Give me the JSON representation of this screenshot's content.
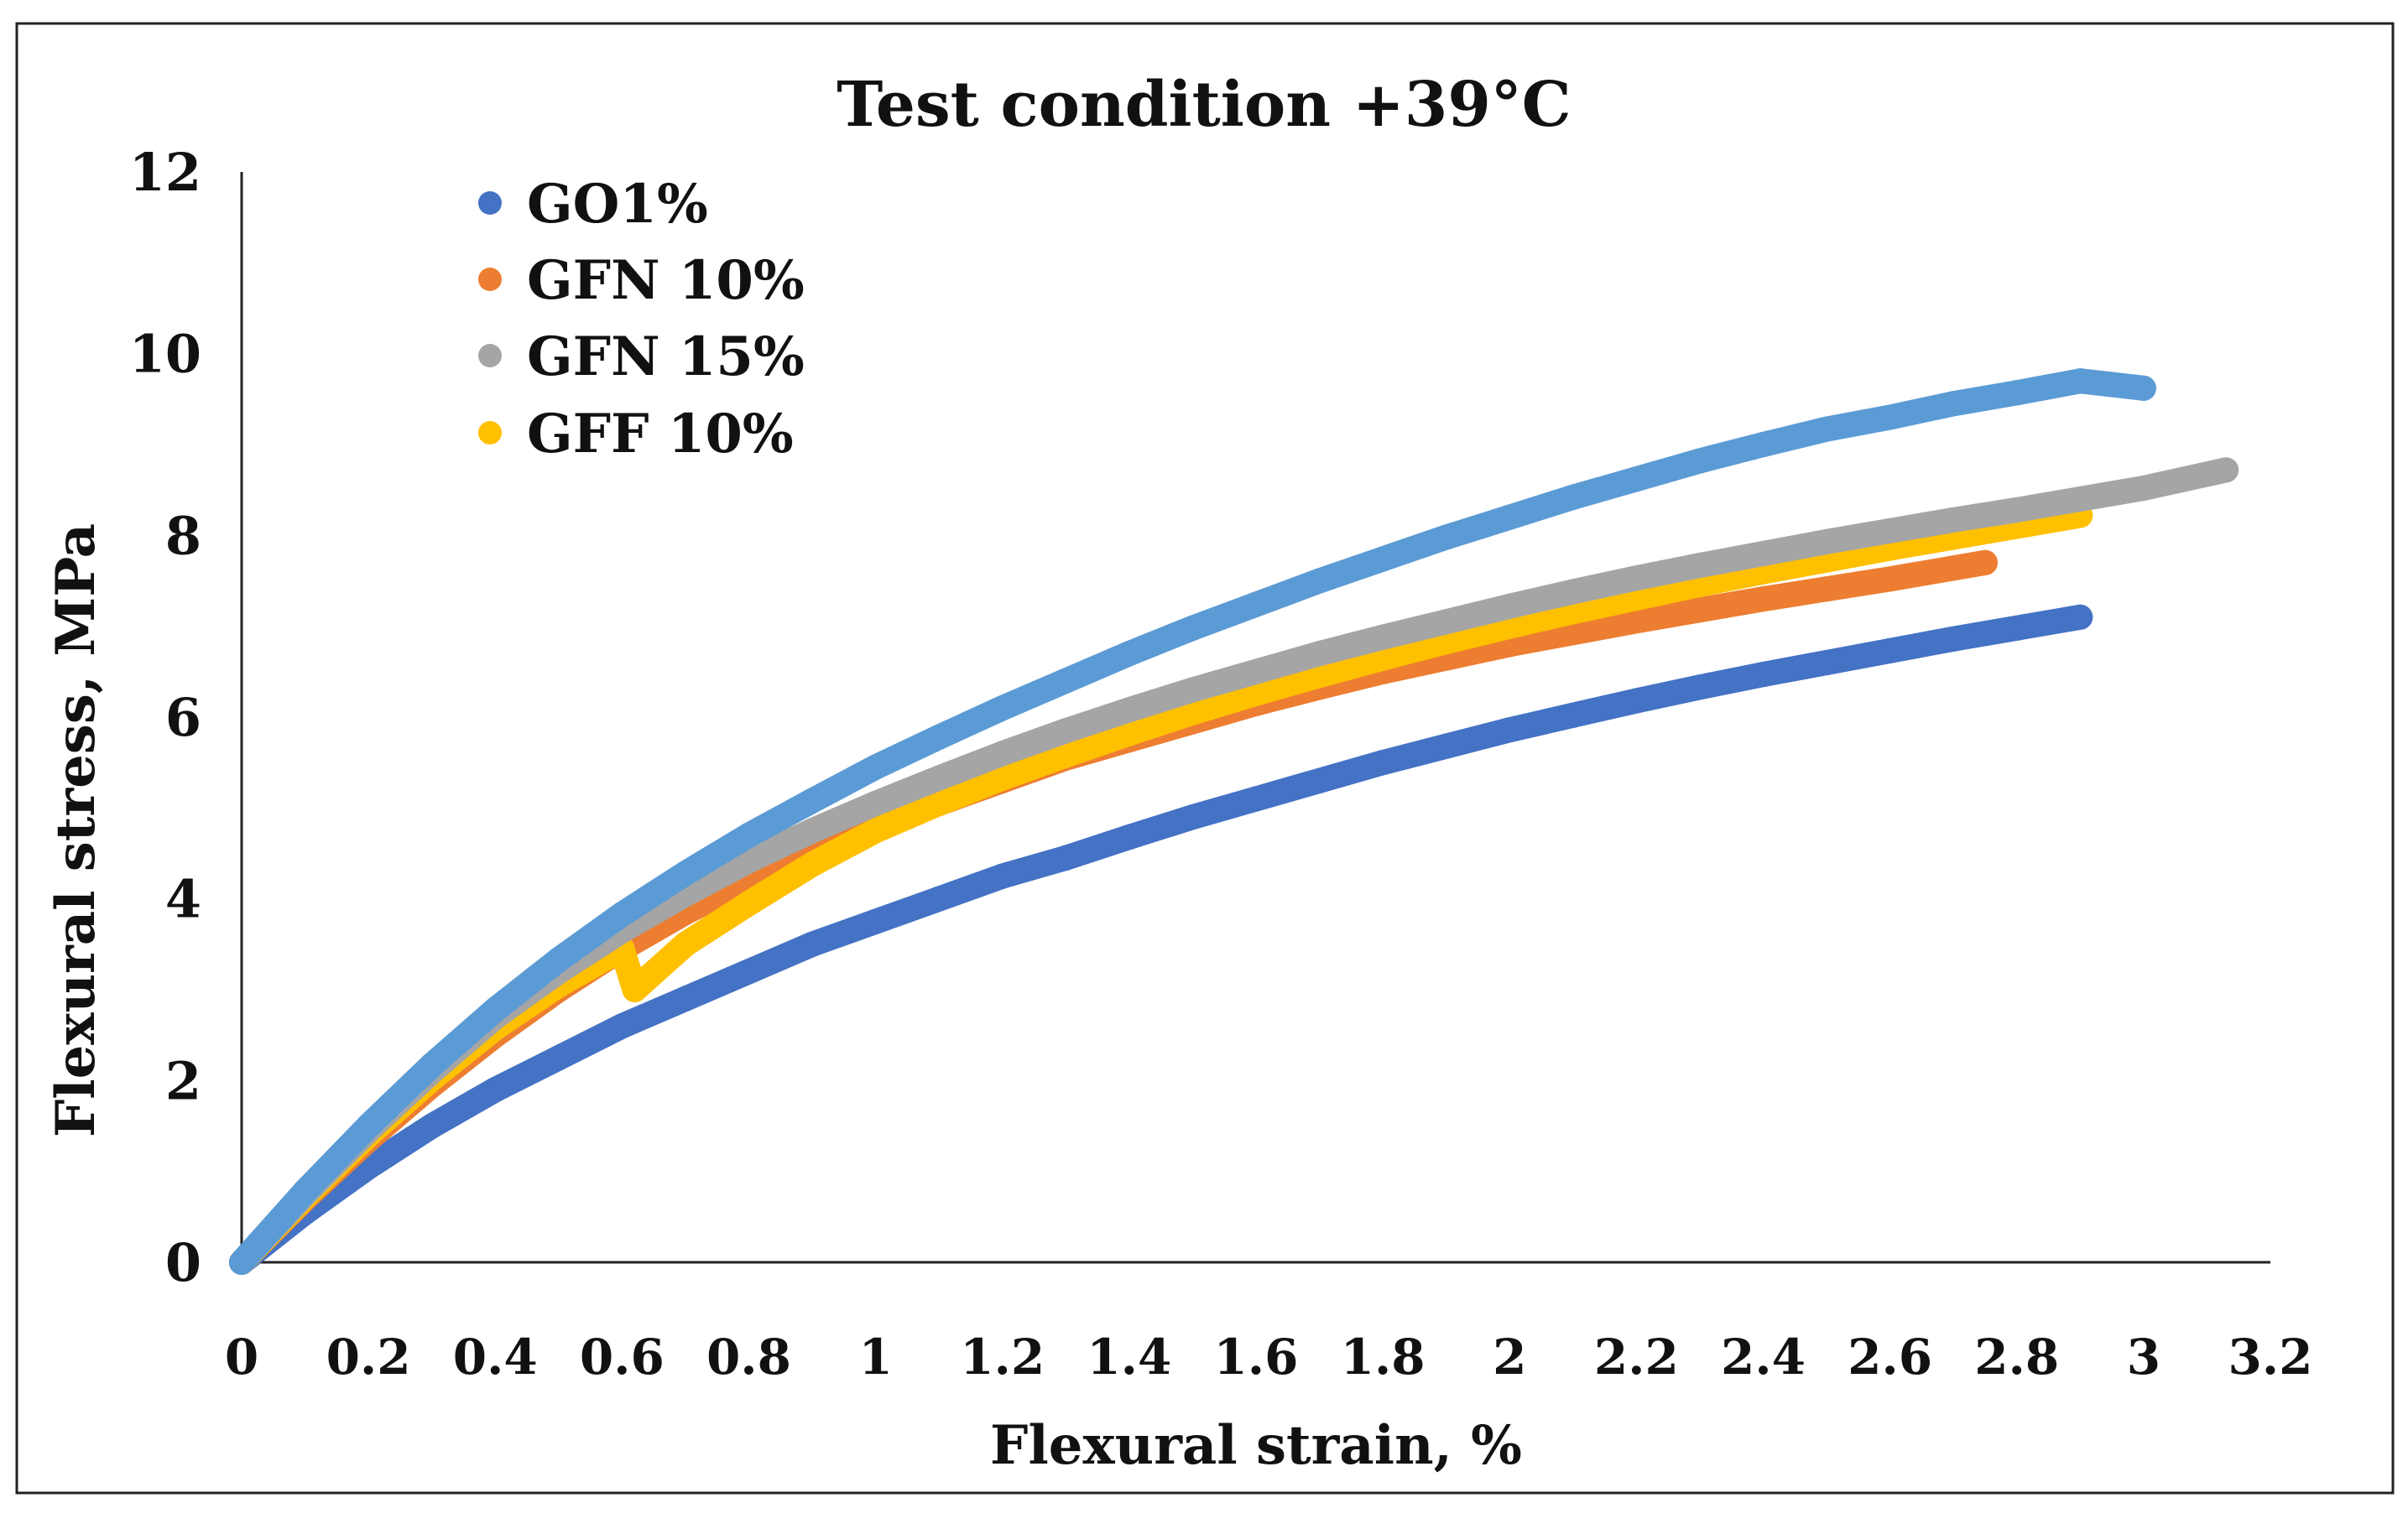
{
  "chart_data": {
    "type": "scatter",
    "title": "Test condition +39°C",
    "xlabel": "Flexural strain, %",
    "ylabel": "Flexural stress, MPa",
    "xlim": [
      0,
      3.2
    ],
    "ylim": [
      0,
      12
    ],
    "x_ticks": [
      "0",
      "0.2",
      "0.4",
      "0.6",
      "0.8",
      "1",
      "1.2",
      "1.4",
      "1.6",
      "1.8",
      "2",
      "2.2",
      "2.4",
      "2.6",
      "2.8",
      "3",
      "3.2"
    ],
    "y_ticks": [
      "0",
      "2",
      "4",
      "6",
      "8",
      "10",
      "12"
    ],
    "grid": false,
    "legend_position": "top-left",
    "series": [
      {
        "name": "GO1%",
        "color": "#4472C4",
        "x": [
          0,
          0.1,
          0.2,
          0.3,
          0.4,
          0.5,
          0.6,
          0.7,
          0.8,
          0.9,
          1.0,
          1.1,
          1.2,
          1.3,
          1.4,
          1.5,
          1.6,
          1.7,
          1.8,
          1.9,
          2.0,
          2.1,
          2.2,
          2.3,
          2.4,
          2.5,
          2.6,
          2.7,
          2.8,
          2.9
        ],
        "y": [
          0,
          0.55,
          1.05,
          1.5,
          1.9,
          2.25,
          2.6,
          2.9,
          3.2,
          3.5,
          3.75,
          4.0,
          4.25,
          4.45,
          4.68,
          4.9,
          5.1,
          5.3,
          5.5,
          5.68,
          5.86,
          6.02,
          6.18,
          6.33,
          6.47,
          6.6,
          6.73,
          6.86,
          6.98,
          7.1
        ]
      },
      {
        "name": "GFN 10%",
        "color": "#ED7D31",
        "x": [
          0,
          0.1,
          0.2,
          0.3,
          0.4,
          0.5,
          0.6,
          0.7,
          0.8,
          0.9,
          1.0,
          1.1,
          1.2,
          1.3,
          1.4,
          1.5,
          1.6,
          1.7,
          1.8,
          1.9,
          2.0,
          2.1,
          2.2,
          2.3,
          2.4,
          2.5,
          2.6,
          2.75
        ],
        "y": [
          0,
          0.7,
          1.35,
          1.95,
          2.5,
          3.0,
          3.45,
          3.85,
          4.2,
          4.5,
          4.8,
          5.05,
          5.3,
          5.55,
          5.75,
          5.95,
          6.15,
          6.33,
          6.5,
          6.65,
          6.8,
          6.93,
          7.06,
          7.18,
          7.3,
          7.41,
          7.52,
          7.7
        ]
      },
      {
        "name": "GFN 15%",
        "color": "#A5A5A5",
        "x": [
          0,
          0.1,
          0.2,
          0.3,
          0.4,
          0.5,
          0.6,
          0.7,
          0.8,
          0.9,
          1.0,
          1.1,
          1.2,
          1.3,
          1.4,
          1.5,
          1.6,
          1.7,
          1.8,
          1.9,
          2.0,
          2.1,
          2.2,
          2.3,
          2.4,
          2.5,
          2.6,
          2.7,
          2.8,
          2.9,
          3.0,
          3.13
        ],
        "y": [
          0,
          0.75,
          1.45,
          2.1,
          2.7,
          3.2,
          3.65,
          4.05,
          4.42,
          4.75,
          5.05,
          5.33,
          5.6,
          5.85,
          6.08,
          6.3,
          6.5,
          6.7,
          6.88,
          7.05,
          7.22,
          7.38,
          7.53,
          7.67,
          7.8,
          7.93,
          8.05,
          8.17,
          8.28,
          8.4,
          8.52,
          8.72
        ]
      },
      {
        "name": "GFF 10%",
        "color": "#FFC000",
        "x": [
          0,
          0.1,
          0.2,
          0.3,
          0.4,
          0.5,
          0.6,
          0.62,
          0.7,
          0.8,
          0.9,
          1.0,
          1.1,
          1.2,
          1.3,
          1.4,
          1.5,
          1.6,
          1.7,
          1.8,
          1.9,
          2.0,
          2.1,
          2.2,
          2.3,
          2.4,
          2.5,
          2.6,
          2.7,
          2.8,
          2.9
        ],
        "y": [
          0,
          0.72,
          1.4,
          2.02,
          2.58,
          3.05,
          3.45,
          3.0,
          3.5,
          3.95,
          4.38,
          4.75,
          5.05,
          5.33,
          5.58,
          5.82,
          6.05,
          6.26,
          6.46,
          6.65,
          6.83,
          7.0,
          7.16,
          7.31,
          7.46,
          7.6,
          7.73,
          7.86,
          7.98,
          8.1,
          8.22
        ]
      },
      {
        "name": "",
        "color": "#5B9BD5",
        "x": [
          0,
          0.1,
          0.2,
          0.3,
          0.4,
          0.5,
          0.6,
          0.7,
          0.8,
          0.9,
          1.0,
          1.1,
          1.2,
          1.3,
          1.4,
          1.5,
          1.6,
          1.7,
          1.8,
          1.9,
          2.0,
          2.1,
          2.2,
          2.3,
          2.4,
          2.5,
          2.6,
          2.7,
          2.8,
          2.9,
          3.0
        ],
        "y": [
          0,
          0.78,
          1.5,
          2.17,
          2.78,
          3.33,
          3.83,
          4.28,
          4.7,
          5.08,
          5.45,
          5.78,
          6.1,
          6.4,
          6.7,
          6.98,
          7.24,
          7.5,
          7.74,
          7.98,
          8.2,
          8.42,
          8.62,
          8.82,
          9.0,
          9.17,
          9.3,
          9.45,
          9.57,
          9.7,
          9.62
        ]
      }
    ]
  }
}
